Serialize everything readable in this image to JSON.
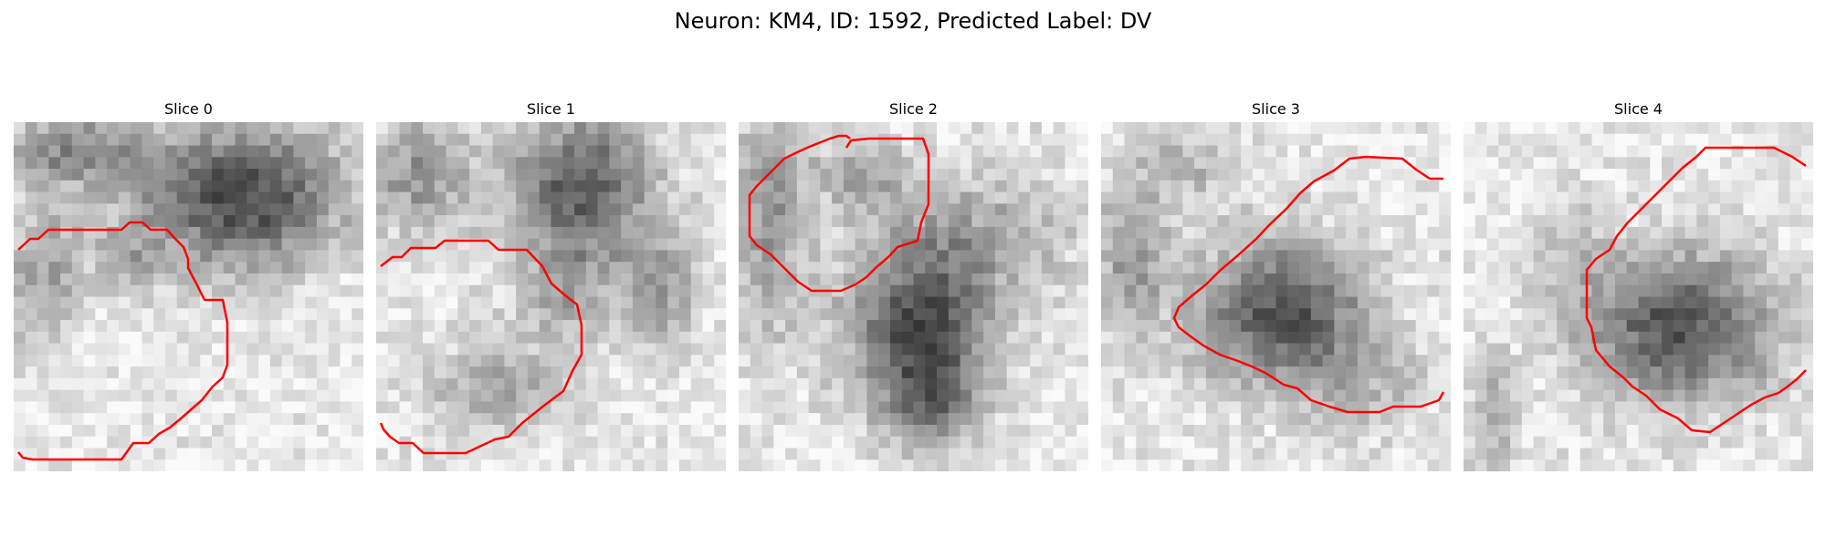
{
  "figure": {
    "title": "Neuron: KM4, ID: 1592, Predicted Label: DV",
    "contour_color": "#ff0000"
  },
  "panels": [
    {
      "title": "Slice 0"
    },
    {
      "title": "Slice 1"
    },
    {
      "title": "Slice 2"
    },
    {
      "title": "Slice 3"
    },
    {
      "title": "Slice 4"
    }
  ]
}
